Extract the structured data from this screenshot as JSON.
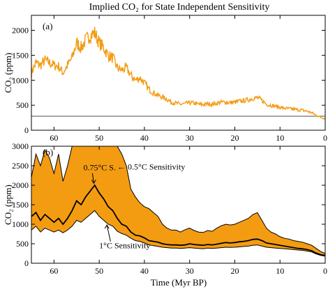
{
  "chart_data": [
    {
      "type": "line",
      "panel_label": "(a)",
      "title": "Implied CO₂ for State Independent Sensitivity",
      "ylabel": "CO₂ (ppm)",
      "xlabel": "",
      "xlim": [
        65,
        0
      ],
      "ylim": [
        0,
        2300
      ],
      "xticks": [
        60,
        50,
        40,
        30,
        20,
        10,
        0
      ],
      "xtick_labels": [
        "60",
        "50",
        "40",
        "30",
        "20",
        "10",
        "0"
      ],
      "yticks": [
        0,
        500,
        1000,
        1500,
        2000
      ],
      "ytick_labels": [
        "0",
        "500",
        "1000",
        "1500",
        "2000"
      ],
      "hline": 280,
      "line_color": "#f39c12",
      "series": [
        {
          "x": [
            65,
            64,
            63,
            62,
            61,
            60,
            59,
            58,
            57,
            56,
            55,
            54,
            53,
            52,
            51,
            50,
            49,
            48,
            47,
            46,
            45,
            44,
            43,
            42,
            41,
            40,
            39,
            38,
            37,
            36,
            35,
            34,
            33,
            32,
            31,
            30,
            29,
            28,
            27,
            26,
            25,
            24,
            23,
            22,
            21,
            20,
            19,
            18,
            17,
            16,
            15,
            14,
            13,
            12,
            11,
            10,
            9,
            8,
            7,
            6,
            5,
            4,
            3,
            2,
            1,
            0
          ],
          "y": [
            1150,
            1350,
            1300,
            1400,
            1350,
            1300,
            1280,
            1150,
            1300,
            1450,
            1750,
            1650,
            1800,
            1900,
            1950,
            1750,
            1650,
            1500,
            1450,
            1250,
            1200,
            1250,
            1100,
            1000,
            1050,
            950,
            820,
            750,
            700,
            660,
            620,
            560,
            540,
            520,
            530,
            550,
            540,
            520,
            510,
            530,
            520,
            540,
            560,
            560,
            550,
            560,
            580,
            590,
            610,
            640,
            650,
            600,
            520,
            500,
            480,
            460,
            440,
            430,
            420,
            410,
            400,
            380,
            350,
            300,
            260,
            230
          ]
        }
      ]
    },
    {
      "type": "area",
      "panel_label": "(b)",
      "title": "",
      "ylabel": "CO₂ (ppm)",
      "xlabel": "Time (Myr BP)",
      "xlim": [
        65,
        0
      ],
      "ylim": [
        0,
        3000
      ],
      "xticks": [
        60,
        50,
        40,
        30,
        20,
        10,
        0
      ],
      "xtick_labels": [
        "60",
        "50",
        "40",
        "30",
        "20",
        "10",
        "0"
      ],
      "yticks": [
        0,
        500,
        1000,
        1500,
        2000,
        2500,
        3000
      ],
      "ytick_labels": [
        "0",
        "500",
        "1000",
        "1500",
        "2000",
        "2500",
        "3000"
      ],
      "band_color": "#f39c12",
      "x": [
        65,
        64,
        63,
        62,
        61,
        60,
        59,
        58,
        57,
        56,
        55,
        54,
        53,
        52,
        51,
        50,
        49,
        48,
        47,
        46,
        45,
        44,
        43,
        42,
        41,
        40,
        39,
        38,
        37,
        36,
        35,
        34,
        33,
        32,
        31,
        30,
        29,
        28,
        27,
        26,
        25,
        24,
        23,
        22,
        21,
        20,
        19,
        18,
        17,
        16,
        15,
        14,
        13,
        12,
        11,
        10,
        9,
        8,
        7,
        6,
        5,
        4,
        3,
        2,
        1,
        0
      ],
      "upper": [
        2200,
        2800,
        2500,
        2900,
        2700,
        2300,
        2800,
        2100,
        2500,
        3000,
        3000,
        3000,
        3000,
        3000,
        3000,
        3000,
        3000,
        3000,
        3000,
        3000,
        2800,
        2500,
        1900,
        1700,
        1550,
        1450,
        1400,
        1300,
        1200,
        1000,
        900,
        850,
        850,
        800,
        860,
        900,
        840,
        800,
        790,
        840,
        820,
        900,
        960,
        1000,
        980,
        1000,
        1050,
        1100,
        1150,
        1250,
        1300,
        1100,
        900,
        800,
        750,
        680,
        640,
        620,
        580,
        560,
        540,
        500,
        460,
        380,
        300,
        250
      ],
      "mid": [
        1200,
        1300,
        1100,
        1250,
        1150,
        1050,
        1150,
        1000,
        1150,
        1350,
        1600,
        1500,
        1700,
        1850,
        2000,
        1800,
        1650,
        1450,
        1350,
        1150,
        1000,
        950,
        800,
        720,
        700,
        650,
        580,
        560,
        540,
        500,
        480,
        470,
        470,
        460,
        470,
        500,
        480,
        470,
        460,
        480,
        470,
        490,
        510,
        530,
        520,
        530,
        550,
        560,
        580,
        610,
        620,
        580,
        520,
        500,
        480,
        460,
        440,
        420,
        400,
        380,
        370,
        350,
        320,
        260,
        220,
        200
      ],
      "lower": [
        850,
        950,
        800,
        900,
        850,
        800,
        850,
        780,
        850,
        950,
        1100,
        1050,
        1150,
        1250,
        1350,
        1200,
        1100,
        1000,
        950,
        820,
        760,
        720,
        640,
        580,
        560,
        520,
        470,
        450,
        430,
        410,
        400,
        390,
        390,
        380,
        390,
        400,
        390,
        380,
        370,
        390,
        380,
        390,
        400,
        410,
        405,
        410,
        420,
        430,
        440,
        460,
        470,
        440,
        410,
        400,
        390,
        380,
        370,
        360,
        350,
        340,
        330,
        310,
        290,
        240,
        200,
        180
      ],
      "annotations": [
        {
          "text": "← 0.5°C Sensitivity",
          "x": 46,
          "y": 2400
        },
        {
          "text": "0.75°C S.",
          "x": 53.5,
          "y": 2380
        },
        {
          "text": "1°C Sensitivity",
          "x": 50,
          "y": 380
        }
      ]
    }
  ]
}
